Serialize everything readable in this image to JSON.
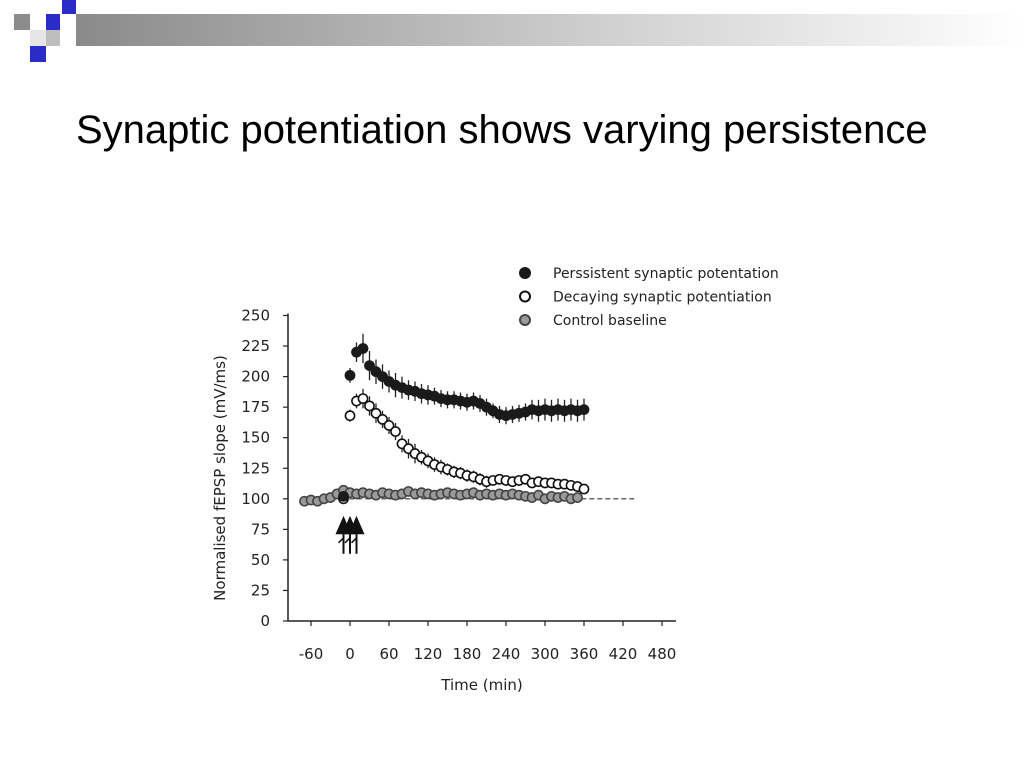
{
  "slide": {
    "title": "Synaptic potentiation shows varying persistence"
  },
  "colors": {
    "header_blue": "#2b2bc8",
    "header_gray": "#8c8c8c",
    "persistent": "#1a1a1a",
    "decaying": "#ffffff",
    "control": "#9a9a9a"
  },
  "chart_data": {
    "type": "scatter",
    "title": "",
    "xlabel": "Time (min)",
    "ylabel": "Normalised fEPSP slope (mV/ms)",
    "xlim": [
      -90,
      490
    ],
    "ylim": [
      0,
      250
    ],
    "x_ticks": [
      -60,
      0,
      60,
      120,
      180,
      240,
      300,
      360,
      420,
      480
    ],
    "y_ticks": [
      0,
      25,
      50,
      75,
      100,
      125,
      150,
      175,
      200,
      225,
      250
    ],
    "baseline": 100,
    "stimulus_times": [
      -10,
      0,
      10
    ],
    "legend_position": "top-right",
    "series": [
      {
        "name": "Perssistent synaptic potentation",
        "marker": "filled",
        "x": [
          -10,
          0,
          10,
          20,
          30,
          40,
          50,
          60,
          70,
          80,
          90,
          100,
          110,
          120,
          130,
          140,
          150,
          160,
          170,
          180,
          190,
          200,
          210,
          220,
          230,
          240,
          250,
          260,
          270,
          280,
          290,
          300,
          310,
          320,
          330,
          340,
          350,
          360
        ],
        "y": [
          102,
          201,
          220,
          223,
          209,
          204,
          200,
          196,
          193,
          191,
          189,
          188,
          186,
          185,
          184,
          182,
          181,
          181,
          180,
          179,
          180,
          178,
          175,
          172,
          169,
          168,
          169,
          170,
          171,
          173,
          172,
          173,
          172,
          173,
          172,
          173,
          172,
          173
        ],
        "err": [
          3,
          6,
          8,
          12,
          12,
          10,
          10,
          9,
          10,
          9,
          8,
          8,
          8,
          8,
          7,
          7,
          7,
          7,
          7,
          7,
          7,
          7,
          7,
          6,
          7,
          7,
          7,
          7,
          7,
          8,
          9,
          9,
          9,
          9,
          9,
          9,
          9,
          9
        ]
      },
      {
        "name": "Decaying synaptic potentiation",
        "marker": "open",
        "x": [
          -10,
          0,
          10,
          20,
          30,
          40,
          50,
          60,
          70,
          80,
          90,
          100,
          110,
          120,
          130,
          140,
          150,
          160,
          170,
          180,
          190,
          200,
          210,
          220,
          230,
          240,
          250,
          260,
          270,
          280,
          290,
          300,
          310,
          320,
          330,
          340,
          350,
          360
        ],
        "y": [
          100,
          168,
          180,
          182,
          176,
          170,
          165,
          160,
          155,
          145,
          141,
          137,
          134,
          131,
          128,
          126,
          124,
          122,
          121,
          119,
          118,
          116,
          114,
          115,
          116,
          115,
          114,
          115,
          116,
          113,
          114,
          113,
          113,
          112,
          112,
          111,
          110,
          108
        ],
        "err": [
          3,
          5,
          6,
          8,
          8,
          8,
          7,
          7,
          7,
          7,
          8,
          8,
          6,
          6,
          6,
          6,
          5,
          5,
          5,
          5,
          5,
          5,
          5,
          4,
          4,
          4,
          4,
          4,
          4,
          4,
          4,
          4,
          4,
          4,
          4,
          4,
          4,
          4
        ]
      },
      {
        "name": "Control baseline",
        "marker": "gray",
        "x": [
          -70,
          -60,
          -50,
          -40,
          -30,
          -20,
          -10,
          0,
          10,
          20,
          30,
          40,
          50,
          60,
          70,
          80,
          90,
          100,
          110,
          120,
          130,
          140,
          150,
          160,
          170,
          180,
          190,
          200,
          210,
          220,
          230,
          240,
          250,
          260,
          270,
          280,
          290,
          300,
          310,
          320,
          330,
          340,
          350
        ],
        "y": [
          98,
          99,
          98,
          100,
          101,
          104,
          107,
          105,
          104,
          105,
          104,
          103,
          105,
          104,
          103,
          104,
          106,
          104,
          105,
          104,
          103,
          104,
          105,
          104,
          103,
          104,
          105,
          103,
          104,
          103,
          104,
          103,
          104,
          103,
          102,
          101,
          103,
          100,
          102,
          101,
          102,
          100,
          101
        ],
        "err": [
          2,
          2,
          2,
          2,
          2,
          3,
          3,
          3,
          3,
          3,
          3,
          3,
          3,
          3,
          3,
          3,
          3,
          3,
          3,
          3,
          3,
          3,
          3,
          3,
          3,
          3,
          3,
          3,
          3,
          3,
          3,
          3,
          3,
          3,
          3,
          3,
          3,
          3,
          3,
          3,
          3,
          3,
          3
        ]
      }
    ]
  }
}
